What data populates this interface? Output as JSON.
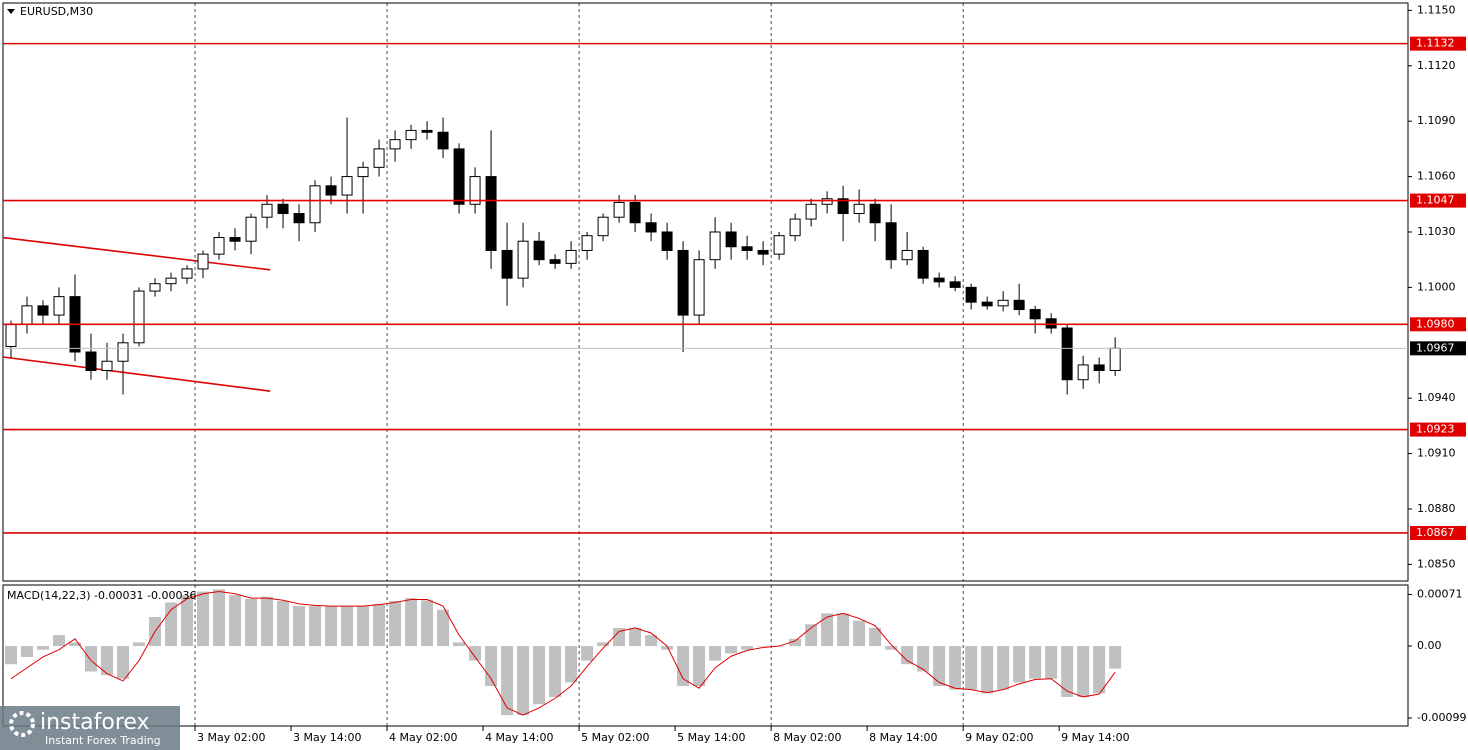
{
  "chart_data": [
    {
      "type": "candlestick",
      "title": "EURUSD,M30",
      "open": [
        1.0968,
        1.098,
        1.099,
        1.0985,
        1.0995,
        1.0965,
        1.0955,
        1.096,
        1.097,
        1.0998,
        1.1002,
        1.1005,
        1.101,
        1.1018,
        1.1027,
        1.1025,
        1.1038,
        1.1045,
        1.104,
        1.1035,
        1.1055,
        1.105,
        1.106,
        1.1065,
        1.1075,
        1.108,
        1.1085,
        1.1084,
        1.1075,
        1.1045,
        1.106,
        1.102,
        1.1005,
        1.1025,
        1.1015,
        1.1013,
        1.102,
        1.1028,
        1.1038,
        1.1046,
        1.1035,
        1.103,
        1.102,
        1.0985,
        1.1015,
        1.103,
        1.1022,
        1.102,
        1.1018,
        1.1028,
        1.1037,
        1.1045,
        1.1048,
        1.104,
        1.1045,
        1.1035,
        1.1015,
        1.102,
        1.1005,
        1.1003,
        1.1,
        1.0992,
        1.099,
        1.0993,
        1.0988,
        1.0983,
        1.0978,
        1.095,
        1.0958,
        1.0955
      ],
      "high": [
        1.0982,
        1.0995,
        1.0993,
        1.1,
        1.1007,
        1.0975,
        1.097,
        1.0975,
        1.1,
        1.1005,
        1.1008,
        1.1012,
        1.102,
        1.103,
        1.1032,
        1.104,
        1.105,
        1.1048,
        1.1045,
        1.1058,
        1.106,
        1.1092,
        1.1068,
        1.108,
        1.1085,
        1.1088,
        1.109,
        1.1092,
        1.1078,
        1.1065,
        1.1085,
        1.1035,
        1.1035,
        1.103,
        1.1018,
        1.1025,
        1.103,
        1.104,
        1.105,
        1.105,
        1.104,
        1.1035,
        1.1025,
        1.102,
        1.1038,
        1.1035,
        1.1028,
        1.1025,
        1.103,
        1.104,
        1.1048,
        1.1052,
        1.1055,
        1.1053,
        1.1048,
        1.1045,
        1.103,
        1.1022,
        1.1008,
        1.1006,
        1.1002,
        1.0995,
        1.0998,
        1.1002,
        1.099,
        1.0986,
        1.098,
        1.0963,
        1.0962,
        1.0973
      ],
      "low": [
        1.0962,
        1.0975,
        1.098,
        1.098,
        1.096,
        1.095,
        1.095,
        1.0942,
        1.0968,
        1.0995,
        1.0998,
        1.1002,
        1.1005,
        1.1015,
        1.102,
        1.1018,
        1.1032,
        1.1032,
        1.1025,
        1.103,
        1.1045,
        1.104,
        1.104,
        1.106,
        1.1068,
        1.1075,
        1.108,
        1.107,
        1.104,
        1.104,
        1.101,
        1.099,
        1.1,
        1.1012,
        1.101,
        1.101,
        1.1015,
        1.1025,
        1.1035,
        1.103,
        1.1025,
        1.1015,
        1.0965,
        1.098,
        1.101,
        1.1015,
        1.1015,
        1.1012,
        1.1015,
        1.1025,
        1.1033,
        1.104,
        1.1025,
        1.1035,
        1.1025,
        1.101,
        1.1012,
        1.1002,
        1.1,
        1.0998,
        1.0988,
        1.0988,
        1.0987,
        1.0985,
        1.0975,
        1.0975,
        1.0942,
        1.0945,
        1.0948,
        1.0952
      ],
      "close": [
        1.098,
        1.099,
        1.0985,
        1.0995,
        1.0965,
        1.0955,
        1.096,
        1.097,
        1.0998,
        1.1002,
        1.1005,
        1.101,
        1.1018,
        1.1027,
        1.1025,
        1.1038,
        1.1045,
        1.104,
        1.1035,
        1.1055,
        1.105,
        1.106,
        1.1065,
        1.1075,
        1.108,
        1.1085,
        1.1084,
        1.1075,
        1.1045,
        1.106,
        1.102,
        1.1005,
        1.1025,
        1.1015,
        1.1013,
        1.102,
        1.1028,
        1.1038,
        1.1046,
        1.1035,
        1.103,
        1.102,
        1.0985,
        1.1015,
        1.103,
        1.1022,
        1.102,
        1.1018,
        1.1028,
        1.1037,
        1.1045,
        1.1048,
        1.104,
        1.1045,
        1.1035,
        1.1015,
        1.102,
        1.1005,
        1.1003,
        1.1,
        1.0992,
        1.099,
        1.0993,
        1.0988,
        1.0983,
        1.0978,
        1.095,
        1.0958,
        1.0955,
        1.0967
      ],
      "up_color": "#ffffff",
      "down_color": "#000000",
      "wick_color": "#000000",
      "xlim": [
        0,
        87.8
      ],
      "xticks": [
        {
          "value": 12,
          "label": "3 May 02:00"
        },
        {
          "value": 18,
          "label": "3 May 14:00"
        },
        {
          "value": 24,
          "label": "4 May 02:00"
        },
        {
          "value": 30,
          "label": "4 May 14:00"
        },
        {
          "value": 36,
          "label": "5 May 02:00"
        },
        {
          "value": 42,
          "label": "5 May 14:00"
        },
        {
          "value": 48,
          "label": "8 May 02:00"
        },
        {
          "value": 54,
          "label": "8 May 14:00"
        },
        {
          "value": 60,
          "label": "9 May 02:00"
        },
        {
          "value": 66,
          "label": "9 May 14:00"
        }
      ],
      "ylim": [
        1.0841,
        1.1154
      ],
      "yticks": [
        {
          "value": 1.115,
          "label": "1.1150"
        },
        {
          "value": 1.112,
          "label": "1.1120"
        },
        {
          "value": 1.109,
          "label": "1.1090"
        },
        {
          "value": 1.106,
          "label": "1.1060"
        },
        {
          "value": 1.103,
          "label": "1.1030"
        },
        {
          "value": 1.1,
          "label": "1.1000"
        },
        {
          "value": 1.094,
          "label": "1.0940"
        },
        {
          "value": 1.091,
          "label": "1.0910"
        },
        {
          "value": 1.088,
          "label": "1.0880"
        },
        {
          "value": 1.085,
          "label": "1.0850"
        }
      ],
      "levels": [
        {
          "value": 1.1132,
          "label": "1.1132"
        },
        {
          "value": 1.1047,
          "label": "1.1047"
        },
        {
          "value": 1.098,
          "label": "1.0980"
        },
        {
          "value": 1.0923,
          "label": "1.0923"
        },
        {
          "value": 1.0867,
          "label": "1.0867"
        }
      ],
      "level_color": "#e00000",
      "current": {
        "value": 1.0967,
        "label": "1.0967"
      },
      "trendlines": [
        {
          "x": [
            0,
            16.7
          ],
          "y": [
            1.1027,
            1.10095
          ]
        },
        {
          "x": [
            0,
            16.7
          ],
          "y": [
            1.09623,
            1.09438
          ]
        }
      ]
    },
    {
      "type": "macd",
      "title": "MACD(14,22,3) -0.00031 -0.00036",
      "ylim": [
        -0.0011,
        0.00084
      ],
      "yticks": [
        {
          "value": 0.00071,
          "label": "0.00071"
        },
        {
          "value": 0,
          "label": "0.00"
        },
        {
          "value": -0.00099,
          "label": "-0.00099"
        }
      ],
      "series": [
        {
          "name": "MACD",
          "color": "#c0c0c0",
          "values": [
            -0.00025,
            -0.00015,
            -5e-05,
            0.00015,
            5e-05,
            -0.00035,
            -0.0004,
            -0.00045,
            5e-05,
            0.0004,
            0.0006,
            0.0007,
            0.00075,
            0.00078,
            0.0007,
            0.00065,
            0.00068,
            0.00062,
            0.00055,
            0.00055,
            0.00055,
            0.00055,
            0.00055,
            0.00058,
            0.00062,
            0.00066,
            0.00063,
            0.0005,
            5e-05,
            -0.0002,
            -0.00055,
            -0.00095,
            -0.00095,
            -0.0008,
            -0.0007,
            -0.0005,
            -0.0002,
            5e-05,
            0.00025,
            0.00025,
            0.00015,
            -5e-05,
            -0.00055,
            -0.00055,
            -0.0002,
            -0.0001,
            -5e-05,
            0,
            0,
            0.0001,
            0.0003,
            0.00045,
            0.00045,
            0.00035,
            0.00025,
            -5e-05,
            -0.00025,
            -0.00035,
            -0.00055,
            -0.0006,
            -0.0006,
            -0.00065,
            -0.0006,
            -0.0005,
            -0.00045,
            -0.00045,
            -0.0007,
            -0.0007,
            -0.00065,
            -0.00031
          ]
        },
        {
          "name": "Signal",
          "color": "#e00000",
          "values": [
            -0.00045,
            -0.0003,
            -0.00015,
            -5e-05,
            0.0001,
            -0.0002,
            -0.00038,
            -0.00048,
            -0.0002,
            0.0002,
            0.0005,
            0.00065,
            0.00072,
            0.00075,
            0.00072,
            0.00066,
            0.00066,
            0.00063,
            0.00058,
            0.00056,
            0.00055,
            0.00055,
            0.00055,
            0.00057,
            0.0006,
            0.00064,
            0.00064,
            0.00055,
            0.00015,
            -0.00015,
            -0.00045,
            -0.00085,
            -0.00095,
            -0.00085,
            -0.00072,
            -0.00055,
            -0.00028,
            -3e-05,
            0.0002,
            0.00025,
            0.00018,
            0,
            -0.00045,
            -0.00058,
            -0.0003,
            -0.00014,
            -6e-05,
            -2e-05,
            0,
            7e-05,
            0.00025,
            0.0004,
            0.00045,
            0.00038,
            0.00028,
            2e-05,
            -0.0002,
            -0.00032,
            -0.0005,
            -0.00058,
            -0.0006,
            -0.00064,
            -0.0006,
            -0.00052,
            -0.00046,
            -0.00045,
            -0.00062,
            -0.0007,
            -0.00066,
            -0.00036
          ]
        }
      ]
    }
  ],
  "logo": {
    "name": "instaforex",
    "tagline": "Instant Forex Trading"
  }
}
